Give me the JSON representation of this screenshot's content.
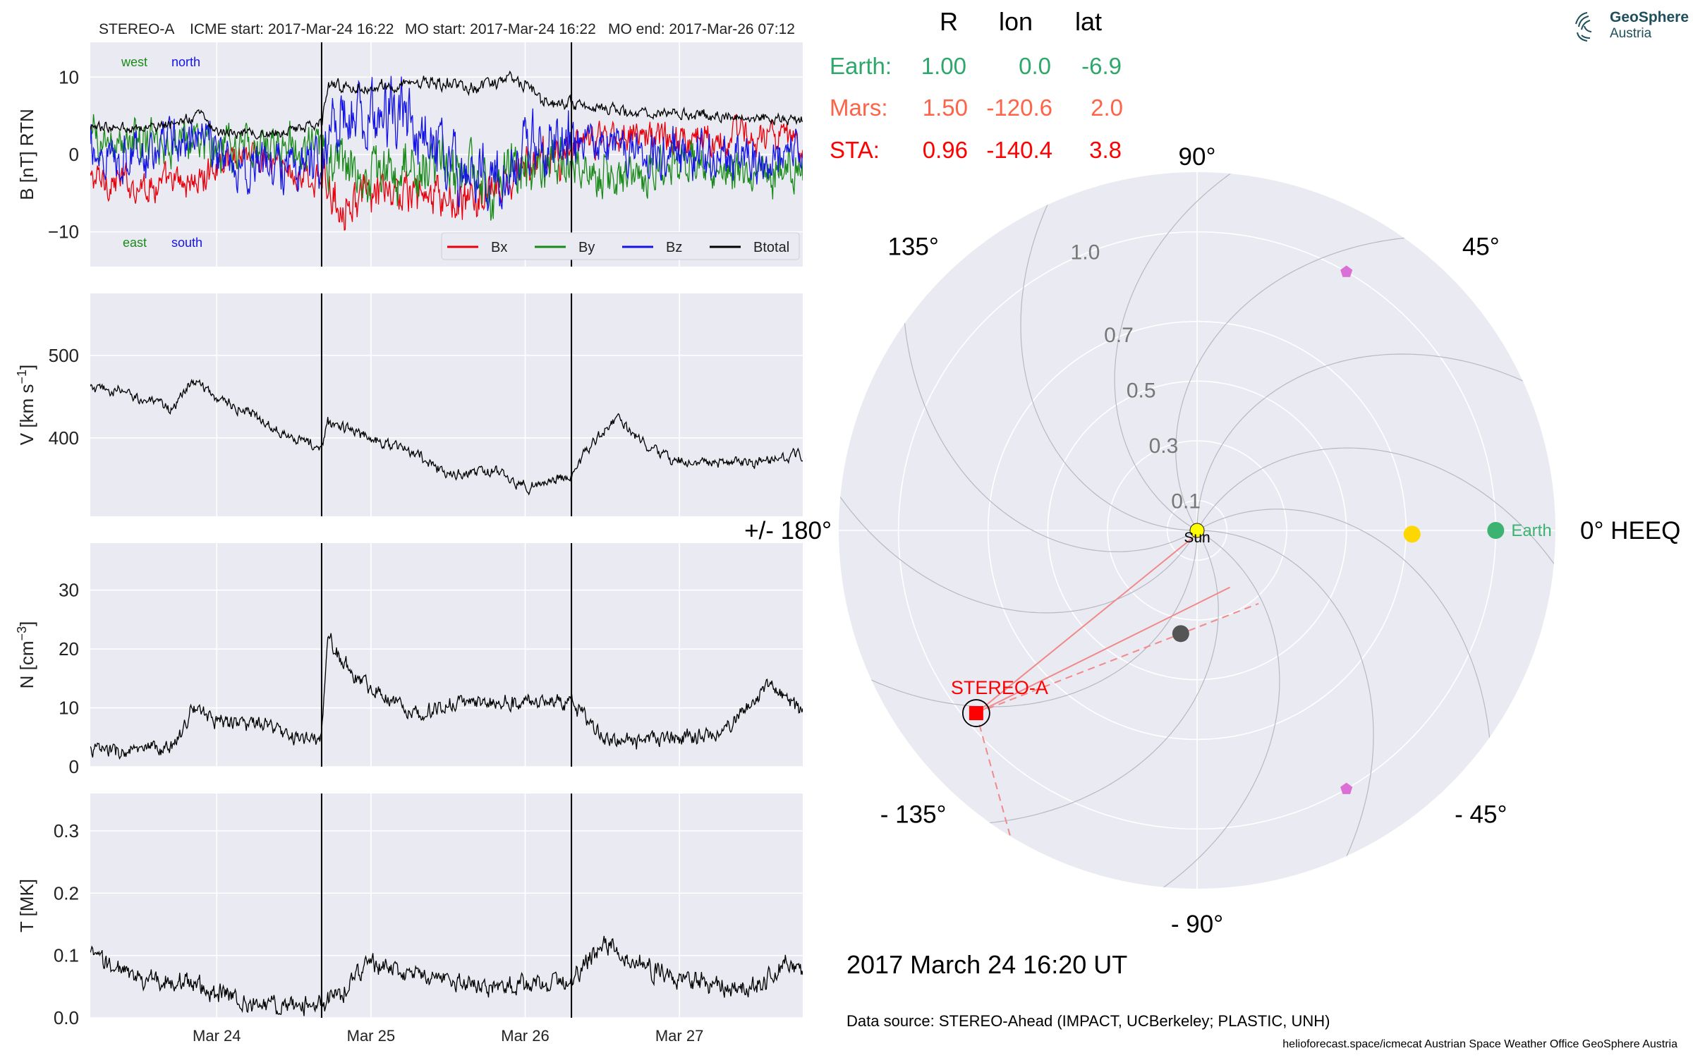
{
  "header": {
    "spacecraft": "STEREO-A",
    "icme_start": "ICME start: 2017-Mar-24 16:22",
    "mo_start": "MO start: 2017-Mar-24 16:22",
    "mo_end": "MO end: 2017-Mar-26 07:12"
  },
  "logo": {
    "name": "GeoSphere",
    "sub": "Austria"
  },
  "time_axis": {
    "start_day": 23.18,
    "end_day": 27.8,
    "tick_days": [
      24,
      25,
      26,
      27
    ],
    "tick_labels": [
      "Mar 24",
      "Mar 25",
      "Mar 26",
      "Mar 27"
    ],
    "vlines_days": [
      24.68,
      26.3
    ]
  },
  "panels": [
    {
      "id": "B",
      "ylabel": "B [nT] RTN",
      "ylim": [
        -14.5,
        14.5
      ],
      "yticks": [
        -10,
        0,
        10
      ],
      "ytick_labels": [
        "−10",
        "0",
        "10"
      ],
      "annotations": {
        "top_left": "west",
        "top_right": "north",
        "bottom_left": "east",
        "bottom_right": "south"
      },
      "legend": [
        "Bx",
        "By",
        "Bz",
        "Btotal"
      ],
      "series": [
        {
          "name": "Bx",
          "color": "#e8000b",
          "amp": 1.6,
          "key": [
            [
              23.18,
              -3.2
            ],
            [
              23.6,
              -4.0
            ],
            [
              23.9,
              -3.5
            ],
            [
              24.0,
              -1
            ],
            [
              24.2,
              0.5
            ],
            [
              24.5,
              -2.5
            ],
            [
              24.68,
              -3.5
            ],
            [
              24.8,
              -6
            ],
            [
              25.2,
              -5
            ],
            [
              25.6,
              -6.5
            ],
            [
              25.9,
              -4
            ],
            [
              26.0,
              -1.5
            ],
            [
              26.3,
              0.5
            ],
            [
              26.6,
              3
            ],
            [
              27.0,
              2
            ],
            [
              27.4,
              2.5
            ],
            [
              27.8,
              1.5
            ]
          ]
        },
        {
          "name": "By",
          "color": "#1a8a1a",
          "amp": 2.2,
          "key": [
            [
              23.18,
              1.8
            ],
            [
              23.6,
              1.2
            ],
            [
              23.9,
              2.2
            ],
            [
              24.0,
              0
            ],
            [
              24.2,
              1.0
            ],
            [
              24.5,
              1.5
            ],
            [
              24.68,
              0.3
            ],
            [
              24.8,
              -1
            ],
            [
              25.0,
              -3
            ],
            [
              25.4,
              -1.5
            ],
            [
              25.8,
              -4
            ],
            [
              26.0,
              -2
            ],
            [
              26.3,
              -1
            ],
            [
              26.6,
              -3
            ],
            [
              27.0,
              -1.5
            ],
            [
              27.4,
              -2
            ],
            [
              27.8,
              -1.2
            ]
          ]
        },
        {
          "name": "Bz",
          "color": "#1414e6",
          "amp": 2.4,
          "key": [
            [
              23.18,
              0.5
            ],
            [
              23.6,
              0
            ],
            [
              23.9,
              3.5
            ],
            [
              24.0,
              -0.5
            ],
            [
              24.3,
              -1.5
            ],
            [
              24.68,
              -0.5
            ],
            [
              24.8,
              4
            ],
            [
              25.2,
              5
            ],
            [
              25.5,
              -2
            ],
            [
              25.9,
              -3
            ],
            [
              26.0,
              2
            ],
            [
              26.3,
              1
            ],
            [
              26.7,
              0
            ],
            [
              27.2,
              -0.5
            ],
            [
              27.8,
              0
            ]
          ]
        },
        {
          "name": "Btotal",
          "color": "#000000",
          "amp": 0.5,
          "key": [
            [
              23.18,
              3.5
            ],
            [
              23.6,
              3.5
            ],
            [
              23.9,
              5
            ],
            [
              24.0,
              3
            ],
            [
              24.3,
              2.5
            ],
            [
              24.68,
              3.8
            ],
            [
              24.72,
              9
            ],
            [
              25.0,
              8.5
            ],
            [
              25.3,
              9.5
            ],
            [
              25.7,
              8.5
            ],
            [
              25.9,
              9.5
            ],
            [
              26.0,
              9
            ],
            [
              26.1,
              7
            ],
            [
              26.3,
              6.5
            ],
            [
              26.7,
              5.5
            ],
            [
              27.2,
              5
            ],
            [
              27.8,
              4.5
            ]
          ]
        }
      ]
    },
    {
      "id": "V",
      "ylabel": "V [km s−1]",
      "ylim": [
        305,
        575
      ],
      "yticks": [
        400,
        500
      ],
      "ytick_labels": [
        "400",
        "500"
      ],
      "series": [
        {
          "name": "V",
          "color": "#000000",
          "amp": 5,
          "key": [
            [
              23.18,
              460
            ],
            [
              23.4,
              455
            ],
            [
              23.7,
              435
            ],
            [
              23.85,
              470
            ],
            [
              23.95,
              455
            ],
            [
              24.3,
              420
            ],
            [
              24.68,
              385
            ],
            [
              24.72,
              420
            ],
            [
              25.0,
              400
            ],
            [
              25.3,
              380
            ],
            [
              25.5,
              355
            ],
            [
              25.8,
              360
            ],
            [
              26.0,
              340
            ],
            [
              26.3,
              355
            ],
            [
              26.4,
              385
            ],
            [
              26.6,
              425
            ],
            [
              26.75,
              395
            ],
            [
              26.9,
              375
            ],
            [
              27.2,
              370
            ],
            [
              27.5,
              370
            ],
            [
              27.8,
              380
            ]
          ]
        }
      ]
    },
    {
      "id": "N",
      "ylabel": "N [cm−3]",
      "ylim": [
        0,
        38
      ],
      "yticks": [
        0,
        10,
        20,
        30
      ],
      "ytick_labels": [
        "0",
        "10",
        "20",
        "30"
      ],
      "series": [
        {
          "name": "N",
          "color": "#000000",
          "amp": 1.0,
          "key": [
            [
              23.18,
              3
            ],
            [
              23.4,
              2.5
            ],
            [
              23.7,
              3
            ],
            [
              23.85,
              10
            ],
            [
              24.0,
              8
            ],
            [
              24.3,
              7
            ],
            [
              24.5,
              5
            ],
            [
              24.68,
              4.5
            ],
            [
              24.72,
              22
            ],
            [
              24.9,
              15
            ],
            [
              25.1,
              12
            ],
            [
              25.3,
              9
            ],
            [
              25.6,
              11
            ],
            [
              25.9,
              11
            ],
            [
              26.3,
              11
            ],
            [
              26.5,
              5
            ],
            [
              26.7,
              4
            ],
            [
              27.0,
              5
            ],
            [
              27.3,
              6
            ],
            [
              27.5,
              12
            ],
            [
              27.6,
              14
            ],
            [
              27.8,
              9
            ]
          ]
        }
      ]
    },
    {
      "id": "T",
      "ylabel": "T [MK]",
      "ylim": [
        0,
        0.36
      ],
      "yticks": [
        0.0,
        0.1,
        0.2,
        0.3
      ],
      "ytick_labels": [
        "0.0",
        "0.1",
        "0.2",
        "0.3"
      ],
      "series": [
        {
          "name": "T",
          "color": "#000000",
          "amp": 0.012,
          "key": [
            [
              23.18,
              0.1
            ],
            [
              23.5,
              0.06
            ],
            [
              23.8,
              0.06
            ],
            [
              24.0,
              0.04
            ],
            [
              24.3,
              0.02
            ],
            [
              24.68,
              0.02
            ],
            [
              24.8,
              0.04
            ],
            [
              25.0,
              0.09
            ],
            [
              25.2,
              0.07
            ],
            [
              25.5,
              0.06
            ],
            [
              25.8,
              0.05
            ],
            [
              26.0,
              0.05
            ],
            [
              26.3,
              0.06
            ],
            [
              26.5,
              0.12
            ],
            [
              26.7,
              0.09
            ],
            [
              27.0,
              0.06
            ],
            [
              27.5,
              0.05
            ],
            [
              27.7,
              0.09
            ],
            [
              27.8,
              0.07
            ]
          ]
        }
      ]
    }
  ],
  "table": {
    "headers": [
      "R",
      "lon",
      "lat"
    ],
    "rows": [
      {
        "label": "Earth:",
        "R": "1.00",
        "lon": "0.0",
        "lat": "-6.9",
        "color": "#2ea76a"
      },
      {
        "label": "Mars:",
        "R": "1.50",
        "lon": "-120.6",
        "lat": "2.0",
        "color": "#ff6347"
      },
      {
        "label": "STA:",
        "R": "0.96",
        "lon": "-140.4",
        "lat": "3.8",
        "color": "#ff0000"
      }
    ]
  },
  "polar": {
    "r_ticks": [
      0.1,
      0.3,
      0.5,
      0.7,
      1.0
    ],
    "r_tick_labels": [
      "0.1",
      "0.3",
      "0.5",
      "0.7",
      "1.0"
    ],
    "rmax": 1.2,
    "angle_labels": [
      {
        "deg": 0,
        "text": "0° HEEQ"
      },
      {
        "deg": 45,
        "text": "45°"
      },
      {
        "deg": 90,
        "text": "90°"
      },
      {
        "deg": 135,
        "text": "135°"
      },
      {
        "deg": 180,
        "text": "+/- 180°"
      },
      {
        "deg": -135,
        "text": "- 135°"
      },
      {
        "deg": -90,
        "text": "- 90°"
      },
      {
        "deg": -45,
        "text": "- 45°"
      }
    ],
    "bodies": [
      {
        "name": "Sun",
        "label": "Sun",
        "r": 0.0,
        "lon": 0,
        "color": "#ffff00"
      },
      {
        "name": "Earth",
        "label": "Earth",
        "r": 1.0,
        "lon": 0.0,
        "color": "#3cb371"
      },
      {
        "name": "Venus",
        "label": "",
        "r": 0.72,
        "lon": -1,
        "color": "#ffd700"
      },
      {
        "name": "Mercury",
        "label": "",
        "r": 0.35,
        "lon": -99,
        "color": "#555555"
      },
      {
        "name": "STEREO-A",
        "label": "STEREO-A",
        "r": 0.96,
        "lon": -140.4,
        "color": "#ff0000"
      },
      {
        "name": "L4",
        "label": "",
        "r": 1.0,
        "lon": 60,
        "color": "#da70d6"
      },
      {
        "name": "L5",
        "label": "",
        "r": 1.0,
        "lon": -60,
        "color": "#da70d6"
      }
    ]
  },
  "date_label": "2017 March 24  16:20 UT",
  "data_source": "Data source: STEREO-Ahead (IMPACT, UCBerkeley; PLASTIC, UNH)",
  "footer": "helioforecast.space/icmecat   Austrian Space Weather Office   GeoSphere Austria"
}
